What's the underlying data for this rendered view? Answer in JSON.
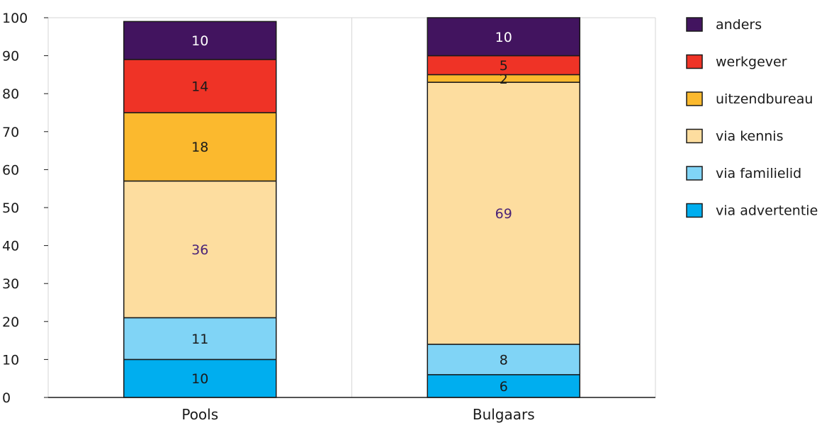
{
  "chart_data": {
    "type": "bar",
    "stacked": true,
    "title": "",
    "xlabel": "",
    "ylabel": "",
    "ylim": [
      0,
      100
    ],
    "yticks": [
      "0",
      "10",
      "20",
      "30",
      "40",
      "50",
      "60",
      "70",
      "80",
      "90",
      "100"
    ],
    "grid": "vertical-only",
    "legend_position": "right",
    "categories": [
      "Pools",
      "Bulgaars"
    ],
    "series": [
      {
        "name": "via advertentie",
        "values": [
          10,
          6
        ],
        "color": "#00aeef",
        "labels": [
          "10",
          "6"
        ]
      },
      {
        "name": "via familielid",
        "values": [
          11,
          8
        ],
        "color": "#80d4f6",
        "labels": [
          "11",
          "8"
        ]
      },
      {
        "name": "via kennis",
        "values": [
          36,
          69
        ],
        "color": "#fddd9f",
        "labels": [
          "36",
          "69"
        ],
        "label_color": "#4a2377"
      },
      {
        "name": "uitzendbureau",
        "values": [
          18,
          2
        ],
        "color": "#fbb92e",
        "labels": [
          "18",
          "2"
        ]
      },
      {
        "name": "werkgever",
        "values": [
          14,
          5
        ],
        "color": "#ef3326",
        "labels": [
          "14",
          "5"
        ]
      },
      {
        "name": "anders",
        "values": [
          10,
          10
        ],
        "color": "#42145f",
        "labels": [
          "10",
          "10"
        ],
        "label_color": "#ffffff"
      }
    ],
    "legend_order": [
      "anders",
      "werkgever",
      "uitzendbureau",
      "via kennis",
      "via familielid",
      "via advertentie"
    ]
  }
}
